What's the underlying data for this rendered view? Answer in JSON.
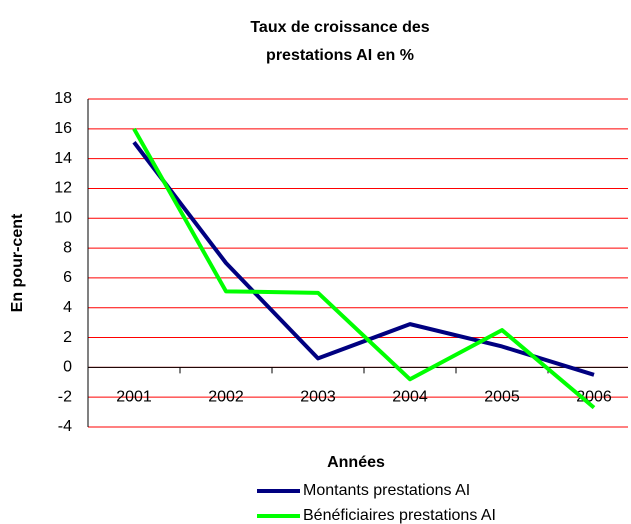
{
  "chart_data": {
    "type": "line",
    "title": [
      "Taux de croissance des",
      "prestations AI en %"
    ],
    "x_label": "Années",
    "y_label": "En pour-cent",
    "categories": [
      "2001",
      "2002",
      "2003",
      "2004",
      "2005",
      "2006"
    ],
    "series": [
      {
        "name": "Montants prestations AI",
        "color": "#000080",
        "values": [
          15.1,
          7,
          0.6,
          2.9,
          1.4,
          -0.5
        ]
      },
      {
        "name": "Bénéficiaires prestations AI",
        "color": "#00ff00",
        "values": [
          16,
          5.1,
          5,
          -0.8,
          2.5,
          -2.7
        ]
      }
    ],
    "ylim": [
      -4,
      18
    ],
    "yticks": [
      -4,
      -2,
      0,
      2,
      4,
      6,
      8,
      10,
      12,
      14,
      16,
      18
    ],
    "grid": true,
    "grid_color": "#ff0000",
    "legend": "bottom"
  }
}
